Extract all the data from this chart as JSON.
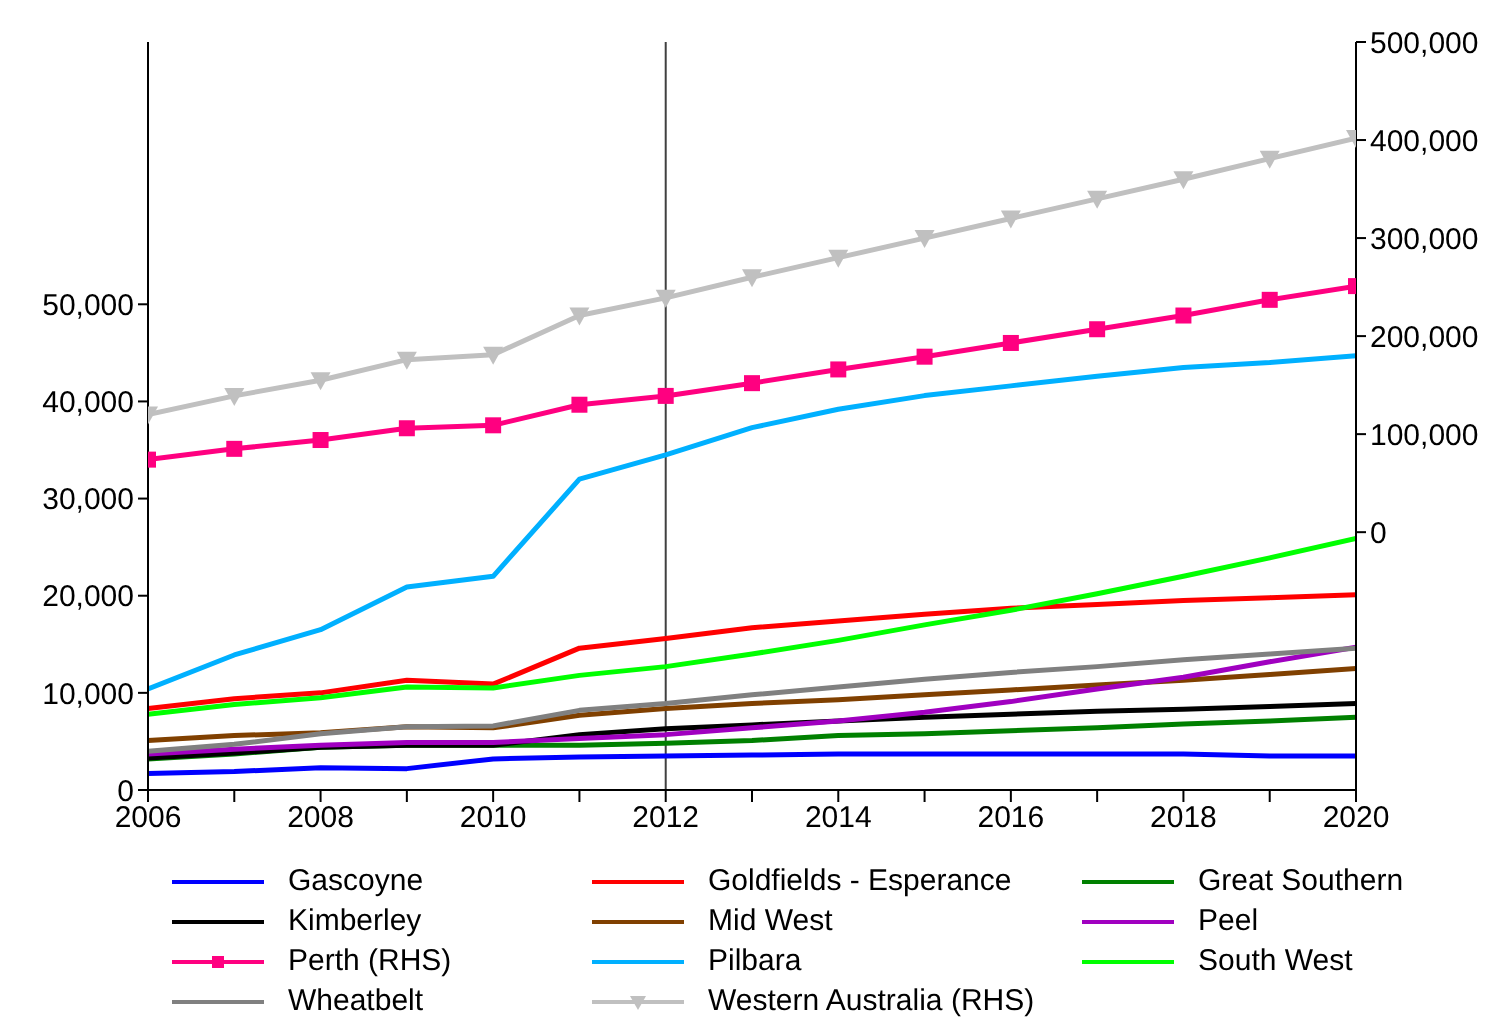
{
  "chart_data": {
    "type": "line",
    "x": [
      2006,
      2007,
      2008,
      2009,
      2010,
      2011,
      2012,
      2013,
      2014,
      2015,
      2016,
      2017,
      2018,
      2019,
      2020
    ],
    "xlim": [
      2006,
      2020
    ],
    "xticks": [
      2006,
      {
        "value": 2007,
        "label": null
      },
      2008,
      {
        "value": 2009,
        "label": null
      },
      2010,
      {
        "value": 2011,
        "label": null
      },
      2012,
      {
        "value": 2013,
        "label": null
      },
      2014,
      {
        "value": 2015,
        "label": null
      },
      2016,
      {
        "value": 2017,
        "label": null
      },
      2018,
      {
        "value": 2019,
        "label": null
      },
      2020
    ],
    "ylim": [
      0,
      77000
    ],
    "yticks": [
      0,
      {
        "value": 10000,
        "label": "10,000"
      },
      {
        "value": 20000,
        "label": "20,000"
      },
      {
        "value": 30000,
        "label": "30,000"
      },
      {
        "value": 40000,
        "label": "40,000"
      },
      {
        "value": 50000,
        "label": "50,000"
      }
    ],
    "y2lim": [
      -263000,
      500000
    ],
    "y2ticks": [
      0,
      {
        "value": 100000,
        "label": "100,000"
      },
      {
        "value": 200000,
        "label": "200,000"
      },
      {
        "value": 300000,
        "label": "300,000"
      },
      {
        "value": 400000,
        "label": "400,000"
      },
      {
        "value": 500000,
        "label": "500,000"
      }
    ],
    "grid": false,
    "legend": "bottom",
    "marker": "none",
    "line_style": "solid",
    "ref_lines": [
      {
        "axis": "x",
        "value": 2012,
        "color": "#404040"
      }
    ],
    "series": [
      {
        "name": "Gascoyne",
        "color": "#0000ff",
        "values": [
          1700,
          1900,
          2300,
          2200,
          3200,
          3400,
          3500,
          3600,
          3700,
          3700,
          3700,
          3700,
          3700,
          3500,
          3500
        ]
      },
      {
        "name": "Goldfields - Esperance",
        "color": "#ff0000",
        "values": [
          8400,
          9400,
          10000,
          11300,
          10900,
          14600,
          15600,
          16700,
          17400,
          18100,
          18700,
          19100,
          19500,
          19800,
          20100
        ]
      },
      {
        "name": "Great Southern",
        "color": "#008000",
        "values": [
          3200,
          3700,
          4400,
          4600,
          4600,
          4600,
          4800,
          5100,
          5600,
          5800,
          6100,
          6400,
          6800,
          7100,
          7500
        ]
      },
      {
        "name": "Kimberley",
        "color": "#000000",
        "values": [
          3300,
          3800,
          4400,
          4600,
          4600,
          5700,
          6300,
          6700,
          7100,
          7500,
          7800,
          8100,
          8300,
          8600,
          8900
        ]
      },
      {
        "name": "Mid West",
        "color": "#804000",
        "values": [
          5100,
          5600,
          5900,
          6500,
          6400,
          7700,
          8400,
          8900,
          9300,
          9800,
          10300,
          10800,
          11300,
          11900,
          12500
        ]
      },
      {
        "name": "Peel",
        "color": "#a000c0",
        "values": [
          3700,
          4200,
          4600,
          4900,
          4900,
          5300,
          5700,
          6400,
          7100,
          8000,
          9100,
          10400,
          11600,
          13200,
          14700
        ]
      },
      {
        "name": "Perth (RHS)",
        "color": "#ff0080",
        "axis": "y2",
        "marker": "square",
        "values": [
          74000,
          85000,
          94000,
          106000,
          109000,
          130000,
          139000,
          152000,
          166000,
          179000,
          193000,
          207000,
          221000,
          237000,
          251000
        ]
      },
      {
        "name": "Pilbara",
        "color": "#00b0ff",
        "values": [
          10400,
          13900,
          16500,
          20900,
          22000,
          32000,
          34500,
          37300,
          39200,
          40600,
          41600,
          42600,
          43500,
          44000,
          44700
        ]
      },
      {
        "name": "South West",
        "color": "#00ff00",
        "values": [
          7800,
          8800,
          9500,
          10600,
          10500,
          11800,
          12700,
          14000,
          15400,
          17000,
          18500,
          20200,
          22000,
          23900,
          25900
        ]
      },
      {
        "name": "Wheatbelt",
        "color": "#808080",
        "values": [
          4000,
          4700,
          5800,
          6500,
          6600,
          8200,
          8900,
          9800,
          10600,
          11400,
          12100,
          12700,
          13400,
          14000,
          14600
        ]
      },
      {
        "name": "Western Australia (RHS)",
        "color": "#c0c0c0",
        "axis": "y2",
        "marker": "triangle",
        "values": [
          120000,
          139000,
          155000,
          176000,
          181000,
          221000,
          239000,
          260000,
          280000,
          300000,
          320000,
          340000,
          360000,
          381000,
          402000
        ]
      }
    ]
  }
}
